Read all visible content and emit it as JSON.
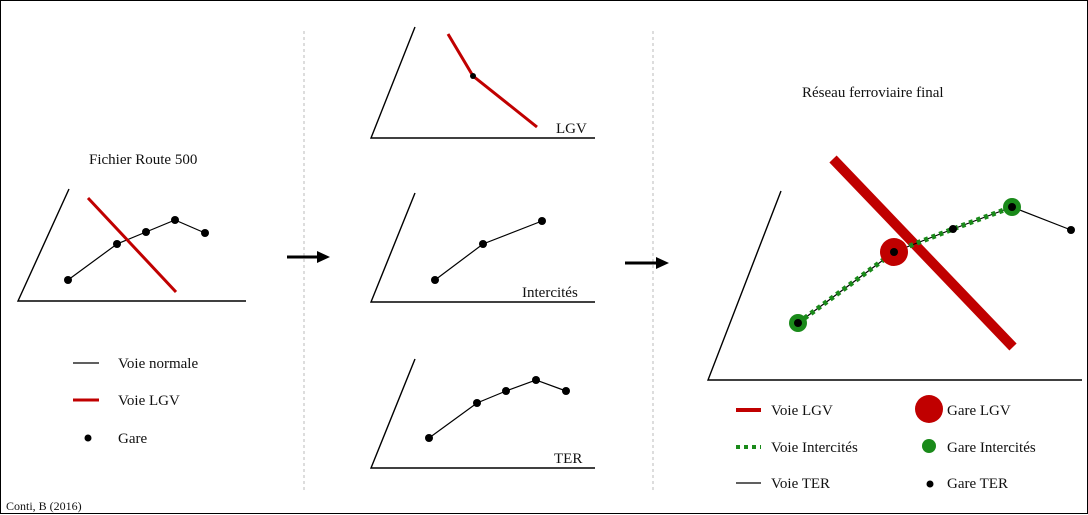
{
  "credit": "Conti, B (2016)",
  "source_panel": {
    "title": "Fichier Route 500",
    "legend": {
      "normal": "Voie normale",
      "lgv": "Voie LGV",
      "station": "Gare"
    }
  },
  "decomposition": {
    "lgv_label": "LGV",
    "intercites_label": "Intercités",
    "ter_label": "TER"
  },
  "final_panel": {
    "title": "Réseau ferroviaire final",
    "legend": {
      "voie_lgv": "Voie LGV",
      "voie_intercites": "Voie Intercités",
      "voie_ter": "Voie TER",
      "gare_lgv": "Gare LGV",
      "gare_intercites": "Gare Intercités",
      "gare_ter": "Gare TER"
    }
  },
  "colors": {
    "lgv": "#c00000",
    "intercites": "#1a8a1a",
    "ter": "#000000",
    "separator": "#bbbbbb"
  }
}
